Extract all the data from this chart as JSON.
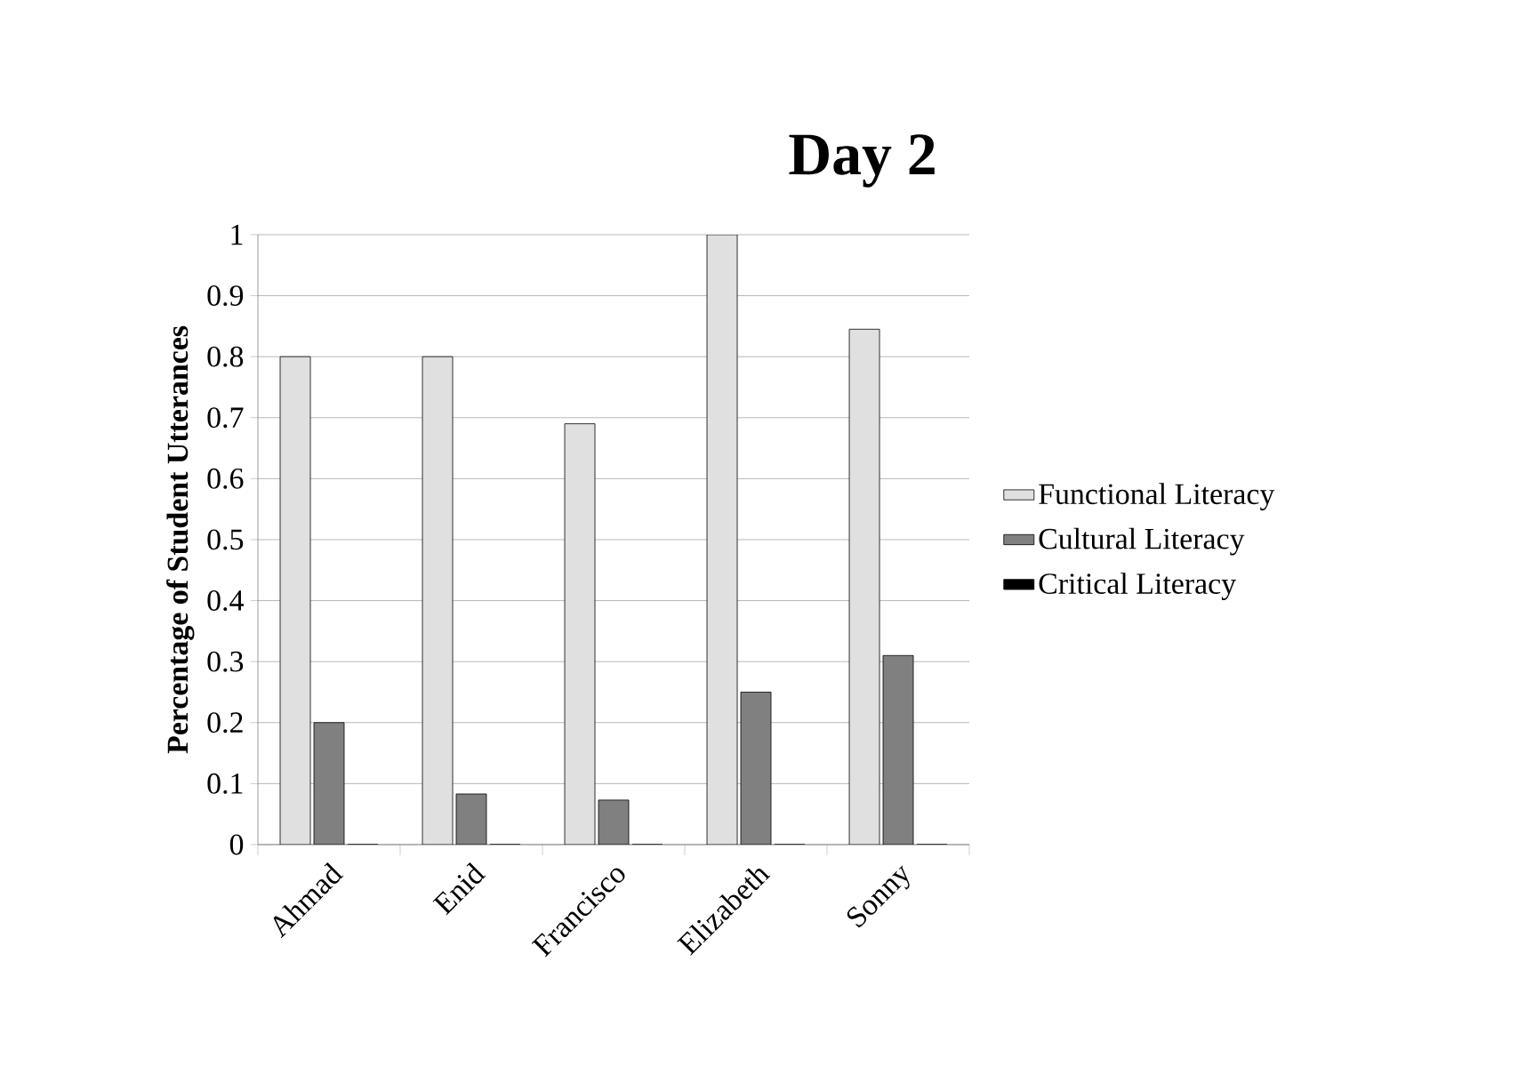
{
  "chart_data": {
    "type": "bar",
    "title": "Day 2",
    "ylabel": "Percentage of Student Utterances",
    "categories": [
      "Ahmad",
      "Enid",
      "Francisco",
      "Elizabeth",
      "Sonny"
    ],
    "series": [
      {
        "name": "Functional Literacy",
        "color": "#e0e0e0",
        "values": [
          0.8,
          0.8,
          0.69,
          1,
          0.845
        ]
      },
      {
        "name": "Cultural Literacy",
        "color": "#808080",
        "values": [
          0.2,
          0.083,
          0.073,
          0.25,
          0.31
        ]
      },
      {
        "name": "Critical Literacy",
        "color": "#000000",
        "values": [
          0,
          0,
          0,
          0,
          0
        ]
      }
    ],
    "ylim": [
      0,
      1
    ],
    "yticks": [
      0,
      0.1,
      0.2,
      0.3,
      0.4,
      0.5,
      0.6,
      0.7,
      0.8,
      0.9,
      1
    ],
    "grid": "y",
    "legend": "right"
  }
}
